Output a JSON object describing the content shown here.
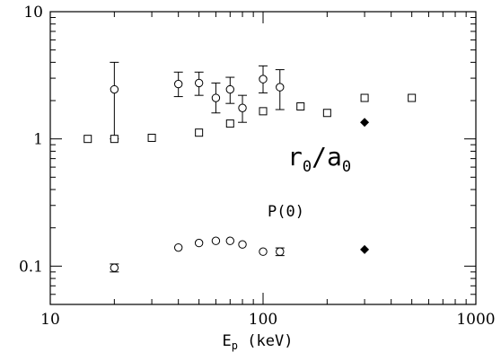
{
  "chart_data": {
    "type": "scatter",
    "x_scale": "log",
    "y_scale": "log",
    "xlim": [
      10,
      1000
    ],
    "ylim": [
      0.05,
      10
    ],
    "x_ticks": [
      {
        "value": 10,
        "label": "10"
      },
      {
        "value": 100,
        "label": "100"
      },
      {
        "value": 1000,
        "label": "1000"
      }
    ],
    "y_ticks": [
      {
        "value": 0.1,
        "label": "0.1"
      },
      {
        "value": 1,
        "label": "1"
      },
      {
        "value": 10,
        "label": "10"
      }
    ],
    "xlabel": {
      "main": "E",
      "sub": "p",
      "rest": " (keV)"
    },
    "ylabel": "",
    "grid": false,
    "annotations": [
      {
        "id": "r0a0",
        "parts": [
          "r",
          "0",
          "/a",
          "0"
        ],
        "x": 130,
        "y": 0.62
      },
      {
        "id": "p0",
        "text": "P(0)",
        "x": 105,
        "y": 0.245
      }
    ],
    "series": [
      {
        "id": "r0a0-circles",
        "marker": "circle",
        "points": [
          {
            "x": 20,
            "y": 2.45,
            "lo": 1.0,
            "hi": 4.0
          },
          {
            "x": 40,
            "y": 2.7,
            "lo": 2.15,
            "hi": 3.35
          },
          {
            "x": 50,
            "y": 2.75,
            "lo": 2.2,
            "hi": 3.35
          },
          {
            "x": 60,
            "y": 2.1,
            "lo": 1.6,
            "hi": 2.75
          },
          {
            "x": 70,
            "y": 2.45,
            "lo": 1.9,
            "hi": 3.05
          },
          {
            "x": 80,
            "y": 1.75,
            "lo": 1.35,
            "hi": 2.2
          },
          {
            "x": 100,
            "y": 2.95,
            "lo": 2.3,
            "hi": 3.75
          },
          {
            "x": 120,
            "y": 2.55,
            "lo": 1.7,
            "hi": 3.5
          }
        ]
      },
      {
        "id": "r0a0-squares",
        "marker": "square",
        "points": [
          {
            "x": 15,
            "y": 1.0
          },
          {
            "x": 20,
            "y": 1.0
          },
          {
            "x": 30,
            "y": 1.02
          },
          {
            "x": 50,
            "y": 1.12
          },
          {
            "x": 70,
            "y": 1.32
          },
          {
            "x": 100,
            "y": 1.65
          },
          {
            "x": 150,
            "y": 1.8
          },
          {
            "x": 200,
            "y": 1.6
          },
          {
            "x": 300,
            "y": 2.1
          },
          {
            "x": 500,
            "y": 2.1
          }
        ]
      },
      {
        "id": "r0a0-diamond",
        "marker": "diamond",
        "points": [
          {
            "x": 300,
            "y": 1.35
          }
        ]
      },
      {
        "id": "p0-circles",
        "marker": "circle",
        "points": [
          {
            "x": 20,
            "y": 0.097,
            "lo": 0.09,
            "hi": 0.104
          },
          {
            "x": 40,
            "y": 0.14
          },
          {
            "x": 50,
            "y": 0.152
          },
          {
            "x": 60,
            "y": 0.158
          },
          {
            "x": 70,
            "y": 0.158
          },
          {
            "x": 80,
            "y": 0.148
          },
          {
            "x": 100,
            "y": 0.13
          },
          {
            "x": 120,
            "y": 0.13,
            "lo": 0.121,
            "hi": 0.139
          }
        ]
      },
      {
        "id": "p0-diamond",
        "marker": "diamond",
        "points": [
          {
            "x": 300,
            "y": 0.135
          }
        ]
      }
    ]
  }
}
